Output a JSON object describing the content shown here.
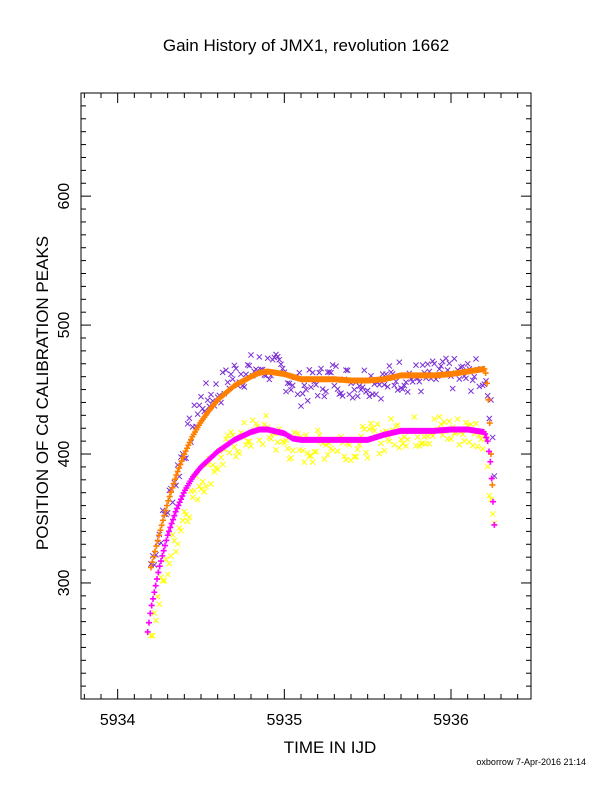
{
  "chart_data": {
    "type": "scatter",
    "title": "Gain History of JMX1, revolution 1662",
    "xlabel": "TIME IN IJD",
    "ylabel": "POSITION OF Cd CALIBRATION PEAKS",
    "xlim": [
      5933.78,
      5936.48
    ],
    "ylim": [
      210,
      680
    ],
    "xticks": [
      5934,
      5935,
      5936
    ],
    "xtick_labels": [
      "5934",
      "5935",
      "5936"
    ],
    "yticks": [
      300,
      400,
      500,
      600
    ],
    "ytick_labels": [
      "300",
      "400",
      "500",
      "600"
    ],
    "grid": false,
    "legend": "none",
    "series": [
      {
        "marker": "x",
        "color": "#7b2fd6",
        "x": [
          5934.2,
          5934.3,
          5934.4,
          5934.5,
          5934.6,
          5934.7,
          5934.8,
          5934.9,
          5935.0,
          5935.1,
          5935.2,
          5935.3,
          5935.4,
          5935.5,
          5935.6,
          5935.7,
          5935.8,
          5935.9,
          5936.0,
          5936.1,
          5936.2,
          5936.22,
          5936.24,
          5936.26
        ],
        "y": [
          315,
          360,
          405,
          440,
          448,
          462,
          465,
          468,
          462,
          450,
          455,
          460,
          455,
          458,
          455,
          462,
          458,
          460,
          462,
          460,
          462,
          450,
          430,
          395
        ]
      },
      {
        "marker": "+",
        "color": "#ff8000",
        "x": [
          5934.2,
          5934.25,
          5934.3,
          5934.35,
          5934.4,
          5934.45,
          5934.5,
          5934.55,
          5934.6,
          5934.7,
          5934.8,
          5934.85,
          5934.9,
          5935.0,
          5935.1,
          5935.2,
          5935.3,
          5935.4,
          5935.5,
          5935.6,
          5935.7,
          5935.8,
          5935.9,
          5936.0,
          5936.1,
          5936.15,
          5936.2,
          5936.21,
          5936.22,
          5936.23,
          5936.24,
          5936.25
        ],
        "y": [
          312,
          338,
          362,
          383,
          400,
          414,
          425,
          434,
          442,
          453,
          460,
          463,
          464,
          462,
          458,
          458,
          458,
          457,
          457,
          458,
          461,
          461,
          461,
          462,
          464,
          465,
          466,
          462,
          450,
          430,
          400,
          370
        ]
      },
      {
        "marker": "x",
        "color": "#ffff00",
        "x": [
          5934.2,
          5934.3,
          5934.4,
          5934.5,
          5934.6,
          5934.7,
          5934.8,
          5934.9,
          5935.0,
          5935.1,
          5935.2,
          5935.3,
          5935.4,
          5935.5,
          5935.6,
          5935.7,
          5935.8,
          5935.9,
          5936.0,
          5936.1,
          5936.2,
          5936.22,
          5936.24,
          5936.26
        ],
        "y": [
          262,
          315,
          355,
          380,
          395,
          408,
          415,
          418,
          408,
          404,
          406,
          410,
          408,
          410,
          414,
          418,
          417,
          419,
          418,
          417,
          417,
          395,
          365,
          345
        ]
      },
      {
        "marker": "+",
        "color": "#ff00ff",
        "x": [
          5934.18,
          5934.2,
          5934.25,
          5934.3,
          5934.35,
          5934.4,
          5934.45,
          5934.5,
          5934.55,
          5934.6,
          5934.7,
          5934.8,
          5934.85,
          5934.9,
          5935.0,
          5935.05,
          5935.1,
          5935.2,
          5935.3,
          5935.4,
          5935.5,
          5935.6,
          5935.7,
          5935.8,
          5935.9,
          5936.0,
          5936.1,
          5936.15,
          5936.2,
          5936.22,
          5936.24,
          5936.26
        ],
        "y": [
          262,
          280,
          312,
          337,
          356,
          371,
          382,
          390,
          396,
          402,
          411,
          417,
          419,
          419,
          416,
          412,
          411,
          411,
          411,
          411,
          411,
          415,
          418,
          418,
          418,
          419,
          419,
          418,
          417,
          410,
          390,
          345
        ]
      }
    ]
  },
  "credit": "oxborrow  7-Apr-2016 21:14"
}
